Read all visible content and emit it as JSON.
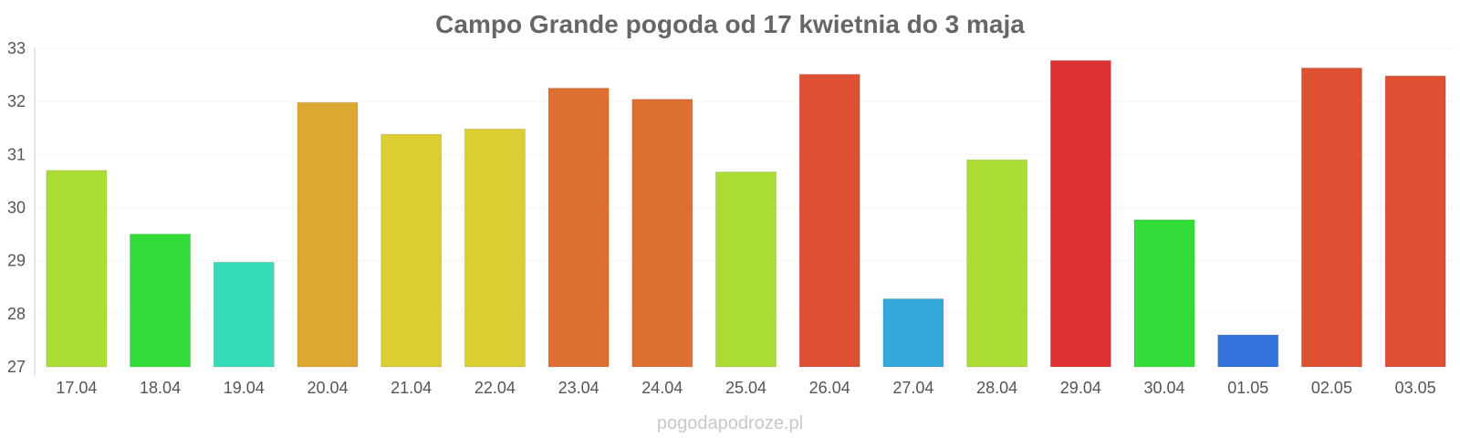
{
  "chart_data": {
    "type": "bar",
    "title": "Campo Grande pogoda od 17 kwietnia do 3 maja",
    "xlabel": "",
    "ylabel": "",
    "ylim": [
      27,
      33
    ],
    "yticks": [
      "27",
      "28",
      "29",
      "30",
      "31",
      "32",
      "33"
    ],
    "grid": true,
    "legend": "none",
    "categories": [
      "17.04",
      "18.04",
      "19.04",
      "20.04",
      "21.04",
      "22.04",
      "23.04",
      "24.04",
      "25.04",
      "26.04",
      "27.04",
      "28.04",
      "29.04",
      "30.04",
      "01.05",
      "02.05",
      "03.05"
    ],
    "values": [
      30.7,
      29.5,
      28.97,
      31.98,
      31.38,
      31.48,
      32.25,
      32.04,
      30.67,
      32.51,
      28.28,
      30.9,
      32.77,
      29.77,
      27.6,
      32.63,
      32.48
    ],
    "colors": [
      "#acdd32",
      "#32dd3a",
      "#35dcb8",
      "#dda832",
      "#dccd32",
      "#dccd32",
      "#dd6f32",
      "#dd6f32",
      "#acdd32",
      "#dd5032",
      "#35a8dc",
      "#acdd32",
      "#dd3232",
      "#32dd3a",
      "#3274dc",
      "#dd5032",
      "#dd5032"
    ]
  },
  "footer": {
    "source": "pogodapodroze.pl"
  }
}
